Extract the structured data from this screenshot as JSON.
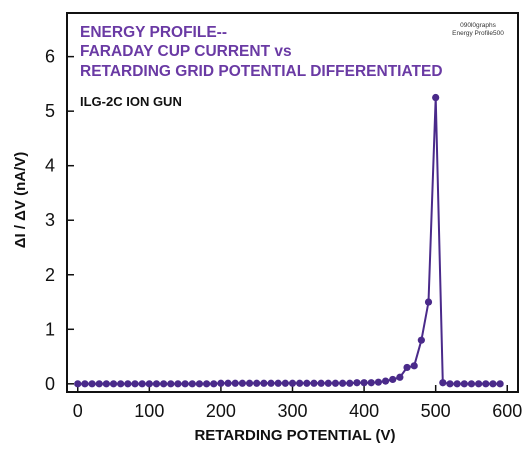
{
  "chart_data": {
    "type": "line",
    "title_lines": [
      "ENERGY PROFILE--",
      "FARADAY CUP CURRENT vs",
      "RETARDING GRID POTENTIAL DIFFERENTIATED"
    ],
    "subtitle": "ILG-2C ION GUN",
    "notes": [
      "090l0graphs",
      "Energy Profile500"
    ],
    "xlabel": "RETARDING POTENTIAL (V)",
    "ylabel": "ΔI / ΔV (nA/V)",
    "xlim": [
      -15,
      615
    ],
    "ylim": [
      -0.15,
      6.8
    ],
    "xticks": [
      0,
      100,
      200,
      300,
      400,
      500,
      600
    ],
    "yticks": [
      0,
      1,
      2,
      3,
      4,
      5,
      6
    ],
    "grid": false,
    "series": [
      {
        "color": "#4a2a8a",
        "x": [
          0,
          10,
          20,
          30,
          40,
          50,
          60,
          70,
          80,
          90,
          100,
          110,
          120,
          130,
          140,
          150,
          160,
          170,
          180,
          190,
          200,
          210,
          220,
          230,
          240,
          250,
          260,
          270,
          280,
          290,
          300,
          310,
          320,
          330,
          340,
          350,
          360,
          370,
          380,
          390,
          400,
          410,
          420,
          430,
          440,
          450,
          460,
          470,
          480,
          490,
          500,
          510,
          520,
          530,
          540,
          550,
          560,
          570,
          580,
          590
        ],
        "y": [
          0,
          0,
          0,
          0,
          0,
          0,
          0,
          0,
          0,
          0,
          0,
          0,
          0,
          0,
          0,
          0,
          0,
          0,
          0,
          0,
          0.01,
          0.01,
          0.01,
          0.01,
          0.01,
          0.01,
          0.01,
          0.01,
          0.01,
          0.01,
          0.01,
          0.01,
          0.01,
          0.01,
          0.01,
          0.01,
          0.01,
          0.01,
          0.01,
          0.02,
          0.02,
          0.02,
          0.03,
          0.05,
          0.08,
          0.12,
          0.3,
          0.33,
          0.8,
          1.5,
          5.25,
          0.02,
          0.0,
          0,
          0,
          0,
          0,
          0,
          0,
          0
        ]
      }
    ]
  }
}
